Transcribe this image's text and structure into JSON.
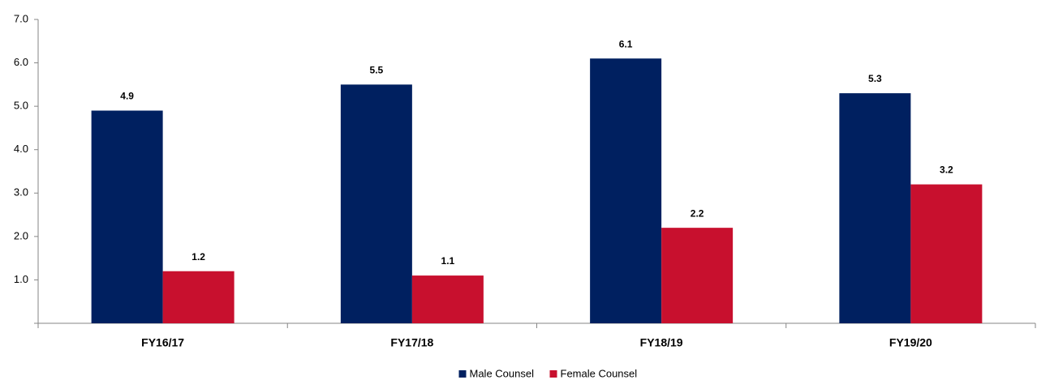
{
  "chart_data": {
    "type": "bar",
    "categories": [
      "FY16/17",
      "FY17/18",
      "FY18/19",
      "FY19/20"
    ],
    "series": [
      {
        "name": "Male Counsel",
        "color": "#002060",
        "values": [
          4.9,
          5.5,
          6.1,
          5.3
        ]
      },
      {
        "name": "Female Counsel",
        "color": "#c8102e",
        "values": [
          1.2,
          1.1,
          2.2,
          3.2
        ]
      }
    ],
    "ylim": [
      0,
      7
    ],
    "yticks": [
      {
        "value": 1,
        "label": "1.0"
      },
      {
        "value": 2,
        "label": "2.0"
      },
      {
        "value": 3,
        "label": "3.0"
      },
      {
        "value": 4,
        "label": "4.0"
      },
      {
        "value": 5,
        "label": "5.0"
      },
      {
        "value": 6,
        "label": "6.0"
      },
      {
        "value": 7,
        "label": "7.0"
      }
    ],
    "grid": false,
    "legend": "bottom"
  }
}
